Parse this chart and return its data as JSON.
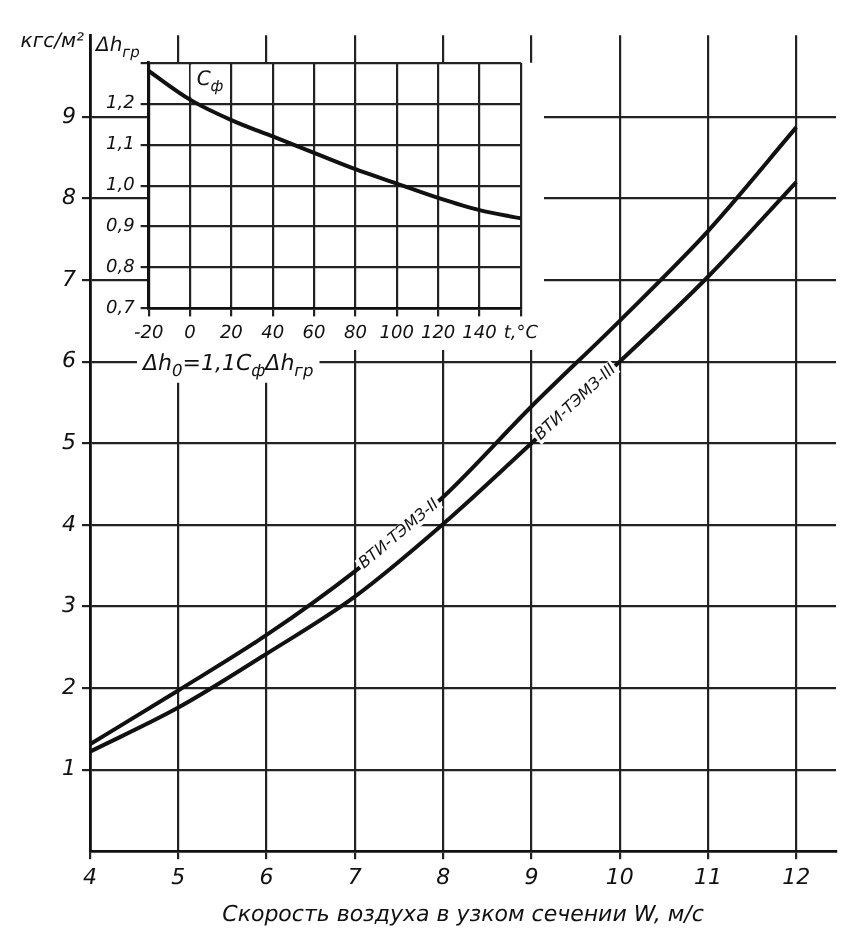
{
  "chart_data": [
    {
      "type": "line",
      "xlabel": "Скорость воздуха в узком сечении W, м/с",
      "ylabel": "кгс/м²",
      "annotations": [
        "Δh$_{гр}$",
        "Δh$_{0}$=1,1C$_{ф}$Δh$_{гр}$"
      ],
      "x": [
        4,
        5,
        6,
        7,
        8,
        9,
        10,
        11,
        12
      ],
      "series": [
        {
          "name": "ВТИ-ТЭМЗ-II",
          "color": "#111111",
          "values": [
            1.31,
            1.97,
            2.65,
            3.43,
            4.34,
            5.45,
            6.5,
            7.6,
            8.87
          ]
        },
        {
          "name": "ВТИ-ТЭМЗ-III",
          "color": "#111111",
          "values": [
            1.22,
            1.76,
            2.42,
            3.12,
            4.01,
            5.0,
            6.0,
            7.04,
            8.2
          ]
        }
      ],
      "xlim": [
        4,
        12.45
      ],
      "xticks": [
        4,
        5,
        6,
        7,
        8,
        9,
        10,
        11,
        12
      ],
      "ylim": [
        0,
        10
      ],
      "yticks": [
        1,
        2,
        3,
        4,
        5,
        6,
        7,
        8,
        9
      ],
      "grid": true,
      "legend": false
    },
    {
      "type": "line",
      "ylabel": "C$_{ф}$",
      "x": [
        -20,
        0,
        20,
        40,
        60,
        80,
        100,
        120,
        140,
        160
      ],
      "series": [
        {
          "color": "#111111",
          "values": [
            1.28,
            1.21,
            1.16,
            1.12,
            1.08,
            1.04,
            1.005,
            0.97,
            0.94,
            0.92
          ]
        }
      ],
      "xlim": [
        -20,
        160
      ],
      "xticks": [
        -20,
        0,
        20,
        40,
        60,
        80,
        100,
        120,
        140,
        {
          "value": 160,
          "label": "t,°C"
        }
      ],
      "ylim": [
        0.7,
        1.3
      ],
      "yticks": [
        {
          "value": 0.7,
          "label": "0,7"
        },
        {
          "value": 0.8,
          "label": "0,8"
        },
        {
          "value": 0.9,
          "label": "0,9"
        },
        {
          "value": 1.0,
          "label": "1,0"
        },
        {
          "value": 1.1,
          "label": "1,1"
        },
        {
          "value": 1.2,
          "label": "1,2"
        },
        {
          "value": 1.3,
          "label": null
        }
      ],
      "grid": true,
      "legend": false
    }
  ]
}
